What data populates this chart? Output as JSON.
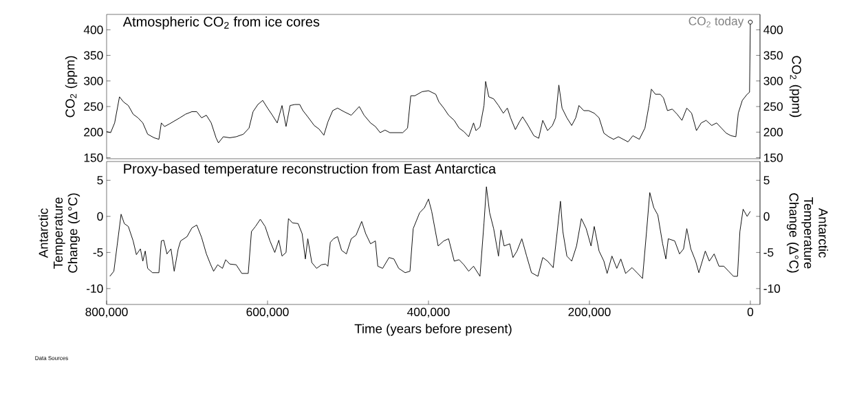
{
  "chart_data": [
    {
      "type": "line",
      "title": "Atmospheric CO$_{2}$ from ice cores",
      "ylabel": "CO$_{2}$ (ppm)",
      "y2label": "CO$_{2}$ (ppm)",
      "annotations": [
        {
          "text": "CO$_{2}$ today",
          "x": 0,
          "y": 415
        }
      ],
      "x": [
        800000,
        795000,
        790000,
        784000,
        779000,
        773000,
        767000,
        761000,
        755000,
        749000,
        741000,
        735000,
        732000,
        728000,
        722000,
        709000,
        702000,
        694000,
        688000,
        682000,
        676000,
        670000,
        664000,
        661000,
        655000,
        647000,
        639000,
        630000,
        623000,
        618000,
        612000,
        606000,
        600000,
        594000,
        588000,
        582000,
        577000,
        572000,
        566000,
        560000,
        556000,
        550000,
        542000,
        536000,
        530000,
        525000,
        519000,
        513000,
        505000,
        496000,
        486000,
        480000,
        472000,
        466000,
        460000,
        454000,
        448000,
        432000,
        426000,
        422000,
        417000,
        408000,
        400000,
        391000,
        387000,
        381000,
        375000,
        368000,
        362000,
        356000,
        350000,
        344000,
        341000,
        336000,
        331000,
        329000,
        325000,
        319000,
        313000,
        307000,
        302000,
        298000,
        292000,
        287000,
        283000,
        277000,
        269000,
        263000,
        258000,
        252000,
        246000,
        242000,
        238000,
        234000,
        228000,
        222000,
        217000,
        213000,
        207000,
        201000,
        194000,
        188000,
        182000,
        176000,
        170000,
        164000,
        158000,
        152000,
        146000,
        138000,
        131000,
        126000,
        123000,
        118000,
        112000,
        108000,
        103000,
        97000,
        91000,
        85000,
        79000,
        73000,
        67000,
        61000,
        55000,
        48000,
        42000,
        36000,
        30000,
        24000,
        18000,
        15000,
        10000,
        4000,
        1000,
        0
      ],
      "series": [
        {
          "color": "#000000",
          "values": [
            201,
            199,
            218,
            269,
            259,
            252,
            235,
            228,
            218,
            196,
            189,
            186,
            218,
            211,
            216,
            228,
            235,
            240,
            240,
            228,
            233,
            218,
            189,
            179,
            191,
            189,
            191,
            196,
            208,
            240,
            254,
            262,
            247,
            233,
            218,
            252,
            211,
            252,
            254,
            254,
            242,
            230,
            213,
            206,
            194,
            220,
            242,
            247,
            240,
            233,
            250,
            233,
            218,
            211,
            199,
            204,
            199,
            199,
            208,
            271,
            271,
            279,
            281,
            274,
            259,
            247,
            233,
            223,
            208,
            201,
            191,
            218,
            203,
            210,
            252,
            299,
            269,
            265,
            252,
            237,
            247,
            228,
            205,
            220,
            230,
            215,
            193,
            188,
            223,
            203,
            213,
            228,
            292,
            247,
            228,
            213,
            228,
            252,
            242,
            242,
            237,
            228,
            198,
            191,
            186,
            191,
            186,
            181,
            193,
            186,
            208,
            252,
            284,
            274,
            274,
            267,
            242,
            245,
            235,
            223,
            247,
            237,
            203,
            218,
            223,
            213,
            218,
            208,
            198,
            193,
            191,
            237,
            262,
            274,
            278,
            415
          ]
        }
      ],
      "xlim": [
        800000,
        -12000
      ],
      "ylim": [
        148,
        430
      ],
      "yticks": [
        150,
        200,
        250,
        300,
        350,
        400
      ],
      "y2lim": [
        148,
        430
      ],
      "y2ticks": [
        150,
        200,
        250,
        300,
        350,
        400
      ],
      "tick_labels": "y"
    },
    {
      "type": "line",
      "title": "Proxy-based temperature reconstruction from East Antarctica",
      "xlabel": "Time (years before present)",
      "ylabel": "Antarctic Temperature Change (Δ°C)",
      "y2label": "Antarctic Temperature Change (Δ°C)",
      "annotations": [
        "Data Sources"
      ],
      "x": [
        796000,
        791000,
        787000,
        782000,
        778000,
        773000,
        767000,
        763000,
        758000,
        755000,
        752000,
        749000,
        743000,
        735000,
        732000,
        729000,
        725000,
        720000,
        716000,
        711000,
        708000,
        700000,
        694000,
        688000,
        682000,
        676000,
        671000,
        667000,
        662000,
        656000,
        652000,
        647000,
        639000,
        632000,
        624000,
        620000,
        615000,
        609000,
        603000,
        597000,
        591000,
        586000,
        582000,
        577000,
        574000,
        569000,
        562000,
        557000,
        553000,
        550000,
        545000,
        539000,
        533000,
        528000,
        525000,
        522000,
        518000,
        513000,
        508000,
        502000,
        496000,
        490000,
        483000,
        478000,
        472000,
        466000,
        463000,
        457000,
        449000,
        443000,
        437000,
        429000,
        423000,
        419000,
        411000,
        405000,
        400000,
        396000,
        388000,
        381000,
        375000,
        368000,
        362000,
        356000,
        350000,
        344000,
        336000,
        331000,
        328000,
        324000,
        319000,
        313000,
        310000,
        306000,
        299000,
        295000,
        290000,
        284000,
        278000,
        272000,
        264000,
        258000,
        252000,
        245000,
        240000,
        236000,
        233000,
        228000,
        222000,
        216000,
        210000,
        204000,
        198000,
        194000,
        188000,
        182000,
        178000,
        172000,
        166000,
        161000,
        155000,
        147000,
        140000,
        134000,
        129000,
        125000,
        120000,
        115000,
        109000,
        105000,
        102000,
        94000,
        88000,
        83000,
        79000,
        74000,
        68000,
        64000,
        56000,
        51000,
        45000,
        39000,
        33000,
        27000,
        21000,
        16000,
        13000,
        9000,
        4000,
        0
      ],
      "series": [
        {
          "color": "#000000",
          "values": [
            -8.3,
            -7.6,
            -4.1,
            0.3,
            -1.0,
            -1.4,
            -3.4,
            -5.3,
            -4.5,
            -6.2,
            -4.8,
            -7.2,
            -7.8,
            -7.8,
            -3.4,
            -3.3,
            -5.2,
            -4.5,
            -7.6,
            -4.5,
            -3.4,
            -2.8,
            -1.6,
            -1.2,
            -2.9,
            -5.2,
            -6.6,
            -7.6,
            -6.7,
            -7.2,
            -6.0,
            -6.6,
            -6.7,
            -7.9,
            -7.9,
            -2.1,
            -1.4,
            -0.4,
            -1.4,
            -3.4,
            -5.0,
            -3.3,
            -5.5,
            -5.0,
            -0.3,
            -0.9,
            -1.0,
            -2.4,
            -5.9,
            -3.1,
            -6.4,
            -7.2,
            -6.7,
            -6.6,
            -6.9,
            -3.6,
            -3.1,
            -2.8,
            -4.7,
            -5.2,
            -3.1,
            -2.6,
            -0.7,
            -2.4,
            -3.8,
            -3.4,
            -6.9,
            -7.2,
            -5.7,
            -5.9,
            -7.2,
            -7.8,
            -7.6,
            -1.7,
            0.5,
            1.2,
            2.4,
            0.7,
            -4.1,
            -3.4,
            -3.1,
            -6.2,
            -6.0,
            -6.7,
            -7.6,
            -6.9,
            -8.3,
            -0.9,
            4.1,
            0.5,
            -1.7,
            -5.5,
            -1.9,
            -4.1,
            -3.8,
            -5.7,
            -4.8,
            -3.1,
            -5.5,
            -7.8,
            -8.3,
            -5.7,
            -6.2,
            -7.1,
            -2.1,
            2.1,
            -2.1,
            -5.5,
            -6.2,
            -4.1,
            -0.3,
            -1.7,
            -4.1,
            -1.4,
            -4.8,
            -6.2,
            -7.9,
            -5.5,
            -7.2,
            -5.9,
            -7.9,
            -7.1,
            -7.9,
            -8.6,
            -2.1,
            3.3,
            1.2,
            0.2,
            -3.8,
            -5.9,
            -3.1,
            -3.4,
            -5.2,
            -4.5,
            -1.7,
            -4.5,
            -6.2,
            -7.8,
            -4.8,
            -6.2,
            -5.2,
            -6.9,
            -6.9,
            -7.6,
            -8.3,
            -8.3,
            -2.1,
            1.0,
            0.0,
            0.7
          ]
        }
      ],
      "xlim": [
        800000,
        -12000
      ],
      "xticks": [
        {
          "value": 800000,
          "label": "800,000"
        },
        {
          "value": 600000,
          "label": "600,000"
        },
        {
          "value": 400000,
          "label": "400,000"
        },
        {
          "value": 200000,
          "label": "200,000"
        },
        0
      ],
      "ylim": [
        -12.2,
        7.6
      ],
      "yticks": [
        -10,
        -5,
        0,
        5
      ],
      "y2lim": [
        -12.2,
        7.6
      ],
      "y2ticks": [
        -10,
        -5,
        0,
        5
      ]
    }
  ]
}
